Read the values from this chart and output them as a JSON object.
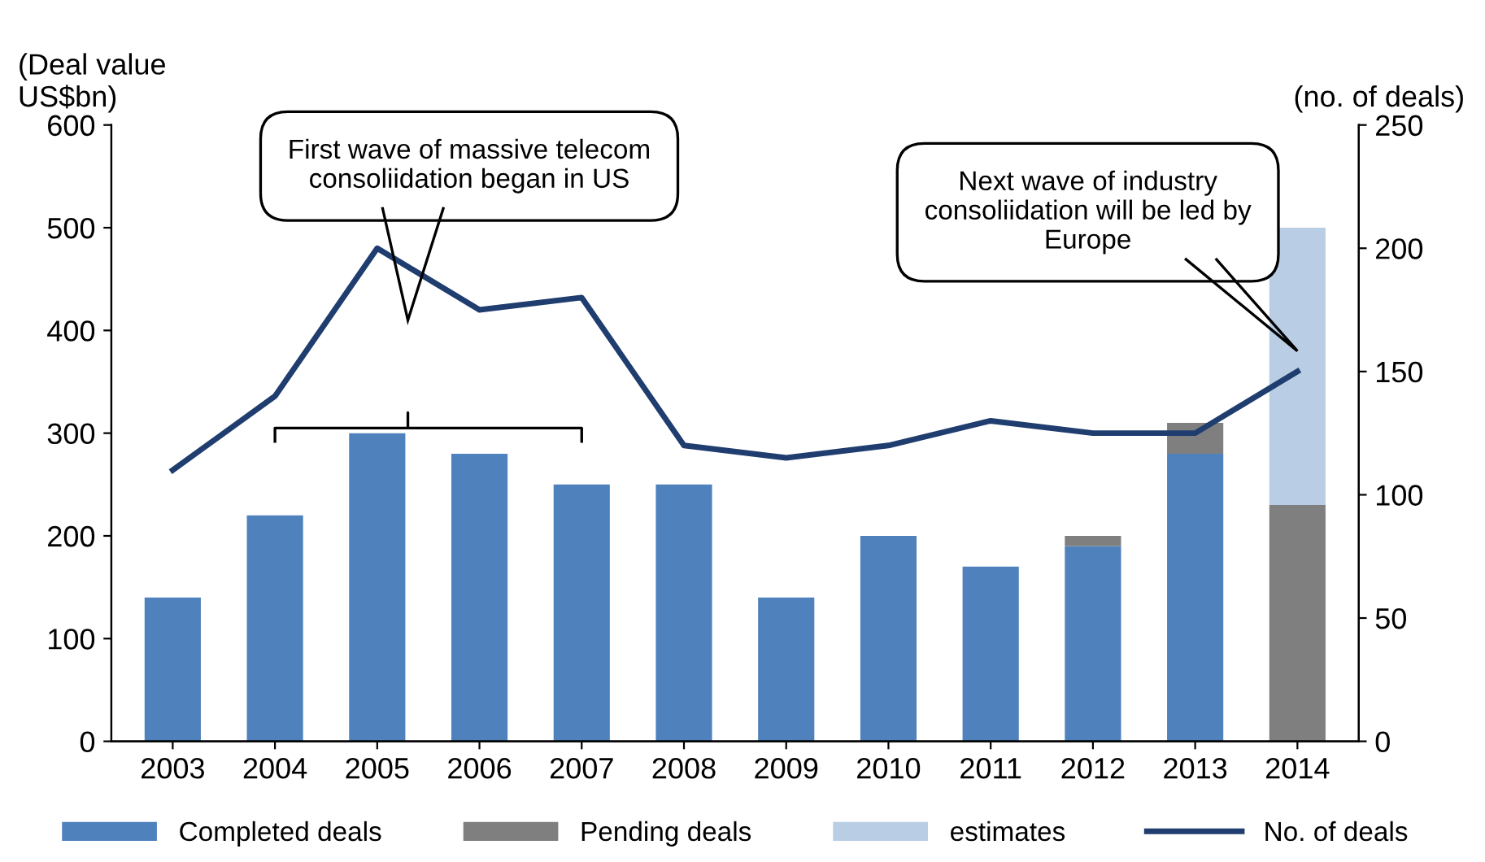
{
  "chart_data": {
    "type": "bar",
    "stacked": true,
    "ylabel": "(Deal value\nUS$bn)",
    "y2label": "(no. of deals)",
    "categories": [
      "2003",
      "2004",
      "2005",
      "2006",
      "2007",
      "2008",
      "2009",
      "2010",
      "2011",
      "2012",
      "2013",
      "2014"
    ],
    "series": [
      {
        "name": "Completed deals",
        "color": "#4f81bd",
        "values": [
          140,
          220,
          300,
          280,
          250,
          250,
          140,
          200,
          170,
          190,
          280,
          null
        ]
      },
      {
        "name": "Pending deals",
        "color": "#7f7f7f",
        "values": [
          null,
          null,
          null,
          null,
          null,
          null,
          null,
          null,
          null,
          10,
          30,
          230
        ]
      },
      {
        "name": "estimates",
        "color": "#b9cde5",
        "values": [
          null,
          null,
          null,
          null,
          null,
          null,
          null,
          null,
          null,
          null,
          null,
          270
        ]
      },
      {
        "name": "No. of deals",
        "type": "line",
        "axis": "y2",
        "color": "#1f3d6e",
        "values": [
          110,
          140,
          200,
          175,
          180,
          120,
          115,
          120,
          130,
          125,
          125,
          150
        ]
      }
    ],
    "ylim": [
      0,
      600
    ],
    "yticks": [
      0,
      100,
      200,
      300,
      400,
      500,
      600
    ],
    "y2lim": [
      0,
      250
    ],
    "y2ticks": [
      0,
      50,
      100,
      150,
      200,
      250
    ],
    "annotations": [
      "First wave of massive telecom\nconsoliidation began in US",
      "Next wave of industry\nconsoliidation will be led by\nEurope"
    ],
    "legend": "bottom",
    "grid": false,
    "marker": "none",
    "line_style": "solid"
  }
}
